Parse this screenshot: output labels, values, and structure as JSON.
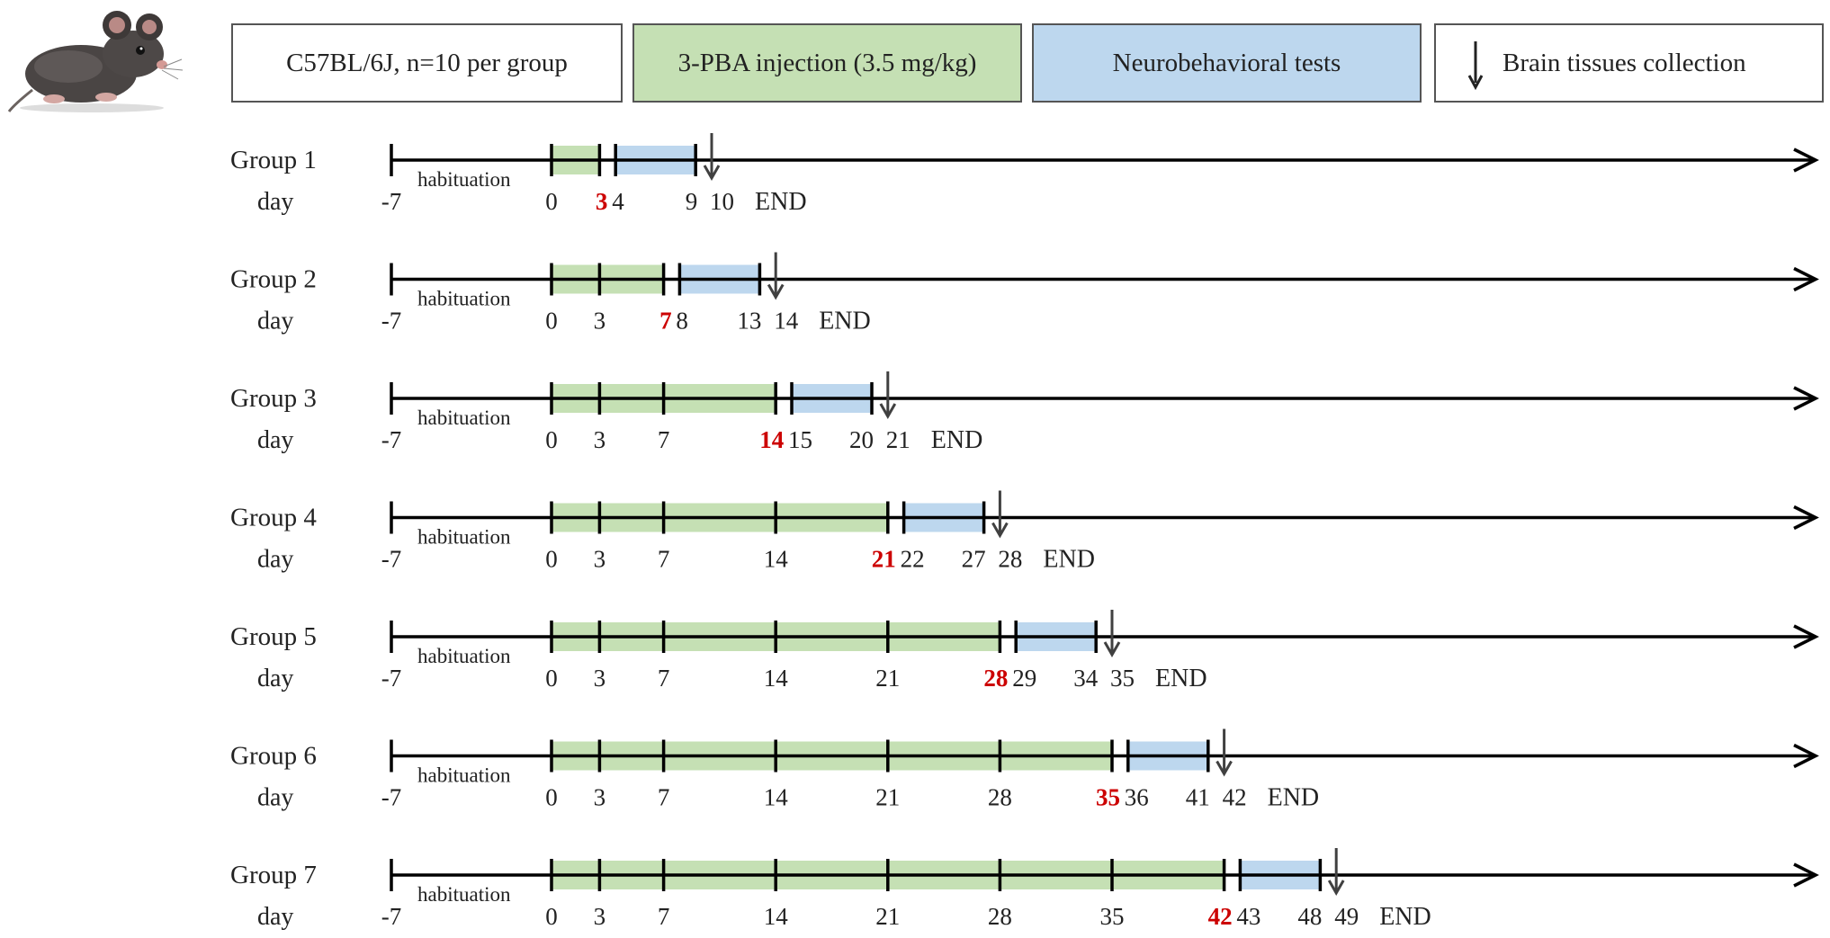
{
  "legend": {
    "strain": "C57BL/6J, n=10 per group",
    "injection": "3-PBA injection (3.5 mg/kg)",
    "tests": "Neurobehavioral tests",
    "collection": "Brain tissues collection"
  },
  "colors": {
    "injection": "#c5e0b4",
    "tests": "#bdd7ee",
    "highlight": "#cc0000",
    "line": "#000000"
  },
  "labels": {
    "day": "day",
    "habituation": "habituation",
    "end": "END"
  },
  "groups": [
    {
      "name": "Group 1",
      "ticks": [
        "-7",
        "0",
        "3",
        "4",
        "9",
        "10"
      ],
      "highlight": "3",
      "injection": [
        0,
        3
      ],
      "tests": [
        4,
        9
      ],
      "collection": 10
    },
    {
      "name": "Group 2",
      "ticks": [
        "-7",
        "0",
        "3",
        "7",
        "8",
        "13",
        "14"
      ],
      "highlight": "7",
      "injection": [
        0,
        7
      ],
      "tests": [
        8,
        13
      ],
      "collection": 14
    },
    {
      "name": "Group 3",
      "ticks": [
        "-7",
        "0",
        "3",
        "7",
        "14",
        "15",
        "20",
        "21"
      ],
      "highlight": "14",
      "injection": [
        0,
        14
      ],
      "tests": [
        15,
        20
      ],
      "collection": 21
    },
    {
      "name": "Group 4",
      "ticks": [
        "-7",
        "0",
        "3",
        "7",
        "14",
        "21",
        "22",
        "27",
        "28"
      ],
      "highlight": "21",
      "injection": [
        0,
        21
      ],
      "tests": [
        22,
        27
      ],
      "collection": 28
    },
    {
      "name": "Group 5",
      "ticks": [
        "-7",
        "0",
        "3",
        "7",
        "14",
        "21",
        "28",
        "29",
        "34",
        "35"
      ],
      "highlight": "28",
      "injection": [
        0,
        28
      ],
      "tests": [
        29,
        34
      ],
      "collection": 35
    },
    {
      "name": "Group 6",
      "ticks": [
        "-7",
        "0",
        "3",
        "7",
        "14",
        "21",
        "28",
        "35",
        "36",
        "41",
        "42"
      ],
      "highlight": "35",
      "injection": [
        0,
        35
      ],
      "tests": [
        36,
        41
      ],
      "collection": 42
    },
    {
      "name": "Group 7",
      "ticks": [
        "-7",
        "0",
        "3",
        "7",
        "14",
        "21",
        "28",
        "35",
        "42",
        "43",
        "48",
        "49"
      ],
      "highlight": "42",
      "injection": [
        0,
        42
      ],
      "tests": [
        43,
        48
      ],
      "collection": 49
    }
  ],
  "image": {
    "subject_icon": "mouse-illustration"
  }
}
